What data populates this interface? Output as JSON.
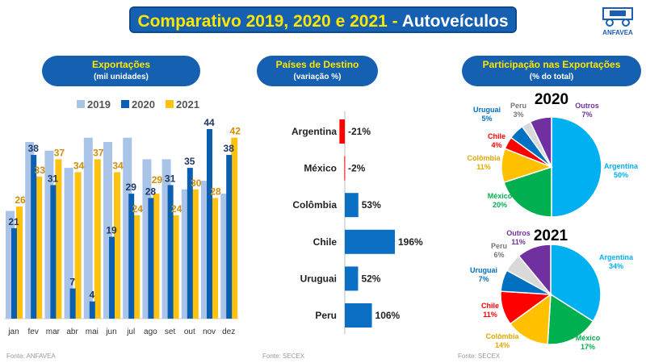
{
  "title": {
    "main": "Comparativo 2019, 2020 e 2021 - ",
    "highlight": "Autoveículos"
  },
  "logo": {
    "text": "ANFAVEA"
  },
  "panels": [
    {
      "title": "Exportações",
      "subtitle": "(mil unidades)",
      "source": "Fonte: ANFAVEA"
    },
    {
      "title": "Países de Destino",
      "subtitle": "(variação %)",
      "source": "Fonte: SECEX"
    },
    {
      "title": "Participação nas Exportações",
      "subtitle": "(% do total)",
      "source": "Fonte: SECEX"
    }
  ],
  "chart_data": [
    {
      "type": "bar",
      "categories": [
        "jan",
        "fev",
        "mar",
        "abr",
        "mai",
        "jun",
        "jul",
        "ago",
        "set",
        "out",
        "nov",
        "dez"
      ],
      "series": [
        {
          "name": "2019",
          "color": "#A9C4E8",
          "values": [
            25,
            41,
            39,
            35,
            42,
            41,
            42,
            37,
            37,
            30,
            32,
            29
          ]
        },
        {
          "name": "2020",
          "color": "#0B5FB0",
          "values": [
            21,
            38,
            31,
            7,
            4,
            19,
            29,
            28,
            31,
            35,
            44,
            38
          ]
        },
        {
          "name": "2021",
          "color": "#FFC20E",
          "values": [
            26,
            33,
            37,
            34,
            37,
            34,
            24,
            29,
            24,
            30,
            28,
            42
          ]
        }
      ],
      "legend": "top",
      "grid": false,
      "ylim": [
        0,
        44
      ]
    },
    {
      "type": "bar",
      "orientation": "horizontal",
      "categories": [
        "Argentina",
        "México",
        "Colômbia",
        "Chile",
        "Uruguai",
        "Peru"
      ],
      "values": [
        -21,
        -2,
        53,
        196,
        52,
        106
      ],
      "labels": [
        "-21%",
        "-2%",
        "53%",
        "196%",
        "52%",
        "106%"
      ],
      "colors": {
        "negative": "#FF0000",
        "positive": "#0B6FC4"
      }
    },
    {
      "type": "pie",
      "title": "2020",
      "labels": [
        "Argentina",
        "México",
        "Colômbia",
        "Chile",
        "Uruguai",
        "Peru",
        "Outros"
      ],
      "values": [
        50,
        20,
        11,
        4,
        5,
        3,
        7
      ],
      "colors": [
        "#00B0F0",
        "#00B050",
        "#FFC000",
        "#FF0000",
        "#0070C0",
        "#D9D9D9",
        "#7030A0"
      ]
    },
    {
      "type": "pie",
      "title": "2021",
      "labels": [
        "Argentina",
        "México",
        "Colômbia",
        "Chile",
        "Uruguai",
        "Peru",
        "Outros"
      ],
      "values": [
        34,
        17,
        14,
        11,
        7,
        6,
        11
      ],
      "colors": [
        "#00B0F0",
        "#00B050",
        "#FFC000",
        "#FF0000",
        "#0070C0",
        "#D9D9D9",
        "#7030A0"
      ]
    }
  ]
}
